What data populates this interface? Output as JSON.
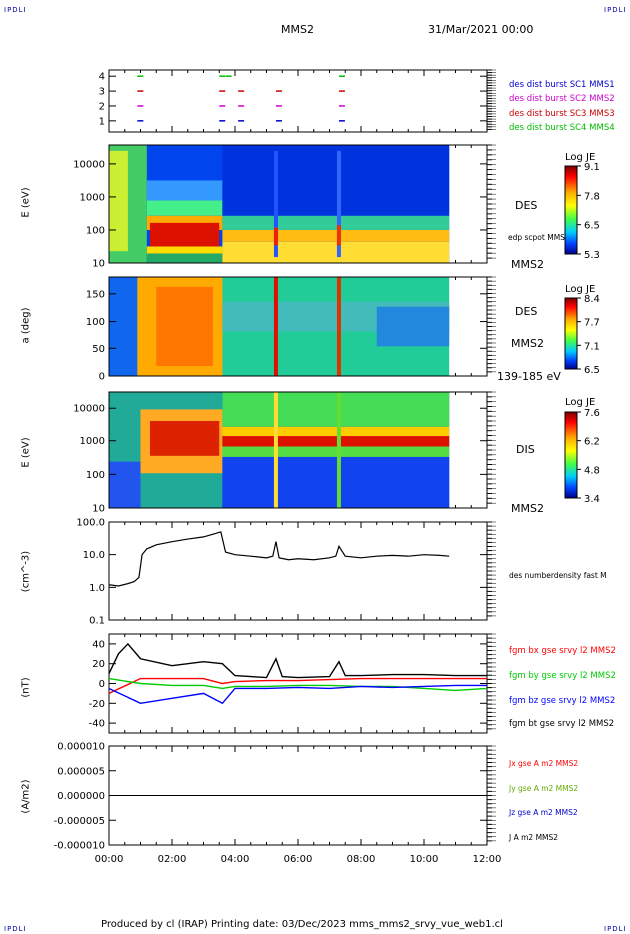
{
  "corner_label": "IPDLI",
  "header": {
    "spacecraft": "MMS2",
    "date": "31/Mar/2021 00:00"
  },
  "footer": {
    "text": "Produced by cl (IRAP)   Printing date: 03/Dec/2023   mms_mms2_srvy_vue_web1.cl"
  },
  "colors": {
    "sc1": "#0000cc",
    "sc2": "#cc00cc",
    "sc3": "#cc0000",
    "sc4": "#00bb00",
    "bx": "#ff0000",
    "by": "#00cc00",
    "bz": "#0000ff",
    "bt": "#000000"
  },
  "chart_data": [
    {
      "type": "scatter",
      "name_right": [
        "des dist burst SC1 MMS1",
        "des dist burst SC2 MMS2",
        "des dist burst SC3 MMS3",
        "des dist burst SC4 MMS4"
      ],
      "yticks": [
        "1",
        "2",
        "3",
        "4"
      ],
      "x_range": [
        0,
        12
      ],
      "series": [
        {
          "y": 4,
          "x": [
            0.9,
            3.5,
            3.7,
            7.3
          ]
        },
        {
          "y": 3,
          "x": [
            0.9,
            3.5,
            4.1,
            5.3,
            7.3
          ]
        },
        {
          "y": 2,
          "x": [
            0.9,
            3.5,
            4.1,
            5.3,
            7.3
          ]
        },
        {
          "y": 1,
          "x": [
            0.9,
            3.5,
            4.1,
            5.3,
            7.3
          ]
        }
      ]
    },
    {
      "type": "heatmap",
      "ylabel": "E (eV)",
      "yticks": [
        "10",
        "100",
        "1000",
        "10000"
      ],
      "right_label": "DES",
      "right_sub": "edp scpot MMS2",
      "right_bottom": "MMS2",
      "colorbar": {
        "title": "Log JE",
        "ticks": [
          "9.1",
          "7.8",
          "6.5",
          "5.3"
        ]
      }
    },
    {
      "type": "heatmap",
      "ylabel": "a (deg)",
      "yticks": [
        "0",
        "50",
        "100",
        "150"
      ],
      "right_label": "DES",
      "right_sub": "MMS2",
      "right_bottom": "139-185 eV",
      "colorbar": {
        "title": "Log JE",
        "ticks": [
          "8.4",
          "7.7",
          "7.1",
          "6.5"
        ]
      }
    },
    {
      "type": "heatmap",
      "ylabel": "E (eV)",
      "yticks": [
        "10",
        "100",
        "1000",
        "10000"
      ],
      "right_label": "DIS",
      "right_bottom": "MMS2",
      "colorbar": {
        "title": "Log JE",
        "ticks": [
          "7.6",
          "6.2",
          "4.8",
          "3.4"
        ]
      }
    },
    {
      "type": "line",
      "ylabel": "(cm^-3)",
      "yticks": [
        "0.1",
        "1.0",
        "10.0",
        "100.0"
      ],
      "y_scale": "log",
      "ylim": [
        0.1,
        100
      ],
      "series": [
        {
          "name": "des numberdensity fast M",
          "x": [
            0.0,
            0.3,
            0.6,
            0.8,
            0.95,
            1.05,
            1.2,
            1.5,
            2.0,
            2.5,
            3.0,
            3.4,
            3.55,
            3.7,
            4.0,
            4.5,
            5.0,
            5.2,
            5.3,
            5.4,
            5.7,
            6.0,
            6.5,
            7.0,
            7.2,
            7.3,
            7.5,
            8.0,
            8.5,
            9.0,
            9.5,
            10.0,
            10.5,
            10.8
          ],
          "y": [
            1.2,
            1.1,
            1.3,
            1.5,
            2.0,
            10.0,
            15.0,
            20.0,
            25.0,
            30.0,
            35.0,
            45.0,
            50.0,
            12.0,
            10.0,
            9.0,
            8.0,
            9.0,
            25.0,
            8.0,
            7.0,
            7.5,
            7.0,
            8.0,
            9.0,
            18.0,
            9.0,
            8.0,
            9.0,
            9.5,
            9.0,
            10.0,
            9.5,
            9.0
          ]
        }
      ]
    },
    {
      "type": "line",
      "ylabel": "(nT)",
      "yticks": [
        "-40",
        "-20",
        "0",
        "20",
        "40"
      ],
      "ylim": [
        -50,
        50
      ],
      "series": [
        {
          "name": "fgm bx gse srvy l2 MMS2",
          "x": [
            0,
            1,
            2,
            3,
            3.6,
            4,
            5,
            6,
            7,
            8,
            9,
            10,
            11,
            12
          ],
          "y": [
            -10,
            5,
            5,
            5,
            0,
            2,
            3,
            3,
            4,
            5,
            5,
            5,
            5,
            5
          ]
        },
        {
          "name": "fgm by gse srvy l2 MMS2",
          "x": [
            0,
            1,
            2,
            3,
            3.6,
            4,
            5,
            6,
            7,
            8,
            9,
            10,
            11,
            12
          ],
          "y": [
            5,
            0,
            -2,
            -2,
            -5,
            -3,
            -3,
            -2,
            -2,
            -3,
            -3,
            -5,
            -7,
            -5
          ]
        },
        {
          "name": "fgm bz gse srvy l2 MMS2",
          "x": [
            0,
            1,
            2,
            3,
            3.6,
            4,
            5,
            6,
            7,
            8,
            9,
            10,
            11,
            12
          ],
          "y": [
            -5,
            -20,
            -15,
            -10,
            -20,
            -5,
            -5,
            -4,
            -5,
            -3,
            -4,
            -3,
            -2,
            -2
          ]
        },
        {
          "name": "fgm bt gse srvy l2 MMS2",
          "x": [
            0,
            0.3,
            0.6,
            1,
            2,
            3,
            3.6,
            4,
            5,
            5.3,
            5.5,
            6,
            7,
            7.3,
            7.5,
            8,
            9,
            10,
            11,
            12
          ],
          "y": [
            10,
            30,
            40,
            25,
            18,
            22,
            20,
            8,
            6,
            25,
            7,
            6,
            7,
            22,
            8,
            8,
            9,
            9,
            8,
            8
          ]
        }
      ]
    },
    {
      "type": "line",
      "ylabel": "(A/m2)",
      "yticks": [
        "-0.000010",
        "-0.000005",
        "0.000000",
        "0.000005",
        "0.000010"
      ],
      "ylim": [
        -1e-05,
        1e-05
      ],
      "series": [
        {
          "name": "Jx gse A m2 MMS2",
          "x": [
            0,
            12
          ],
          "y": [
            0,
            0
          ]
        },
        {
          "name": "Jy gse A m2 MMS2",
          "x": [
            0,
            12
          ],
          "y": [
            0,
            0
          ]
        },
        {
          "name": "Jz gse A m2 MMS2",
          "x": [
            0,
            12
          ],
          "y": [
            0,
            0
          ]
        },
        {
          "name": "J A m2 MMS2",
          "x": [
            0,
            12
          ],
          "y": [
            0,
            0
          ]
        }
      ]
    }
  ],
  "xticks": [
    "00:00",
    "02:00",
    "04:00",
    "06:00",
    "08:00",
    "10:00",
    "12:00"
  ]
}
